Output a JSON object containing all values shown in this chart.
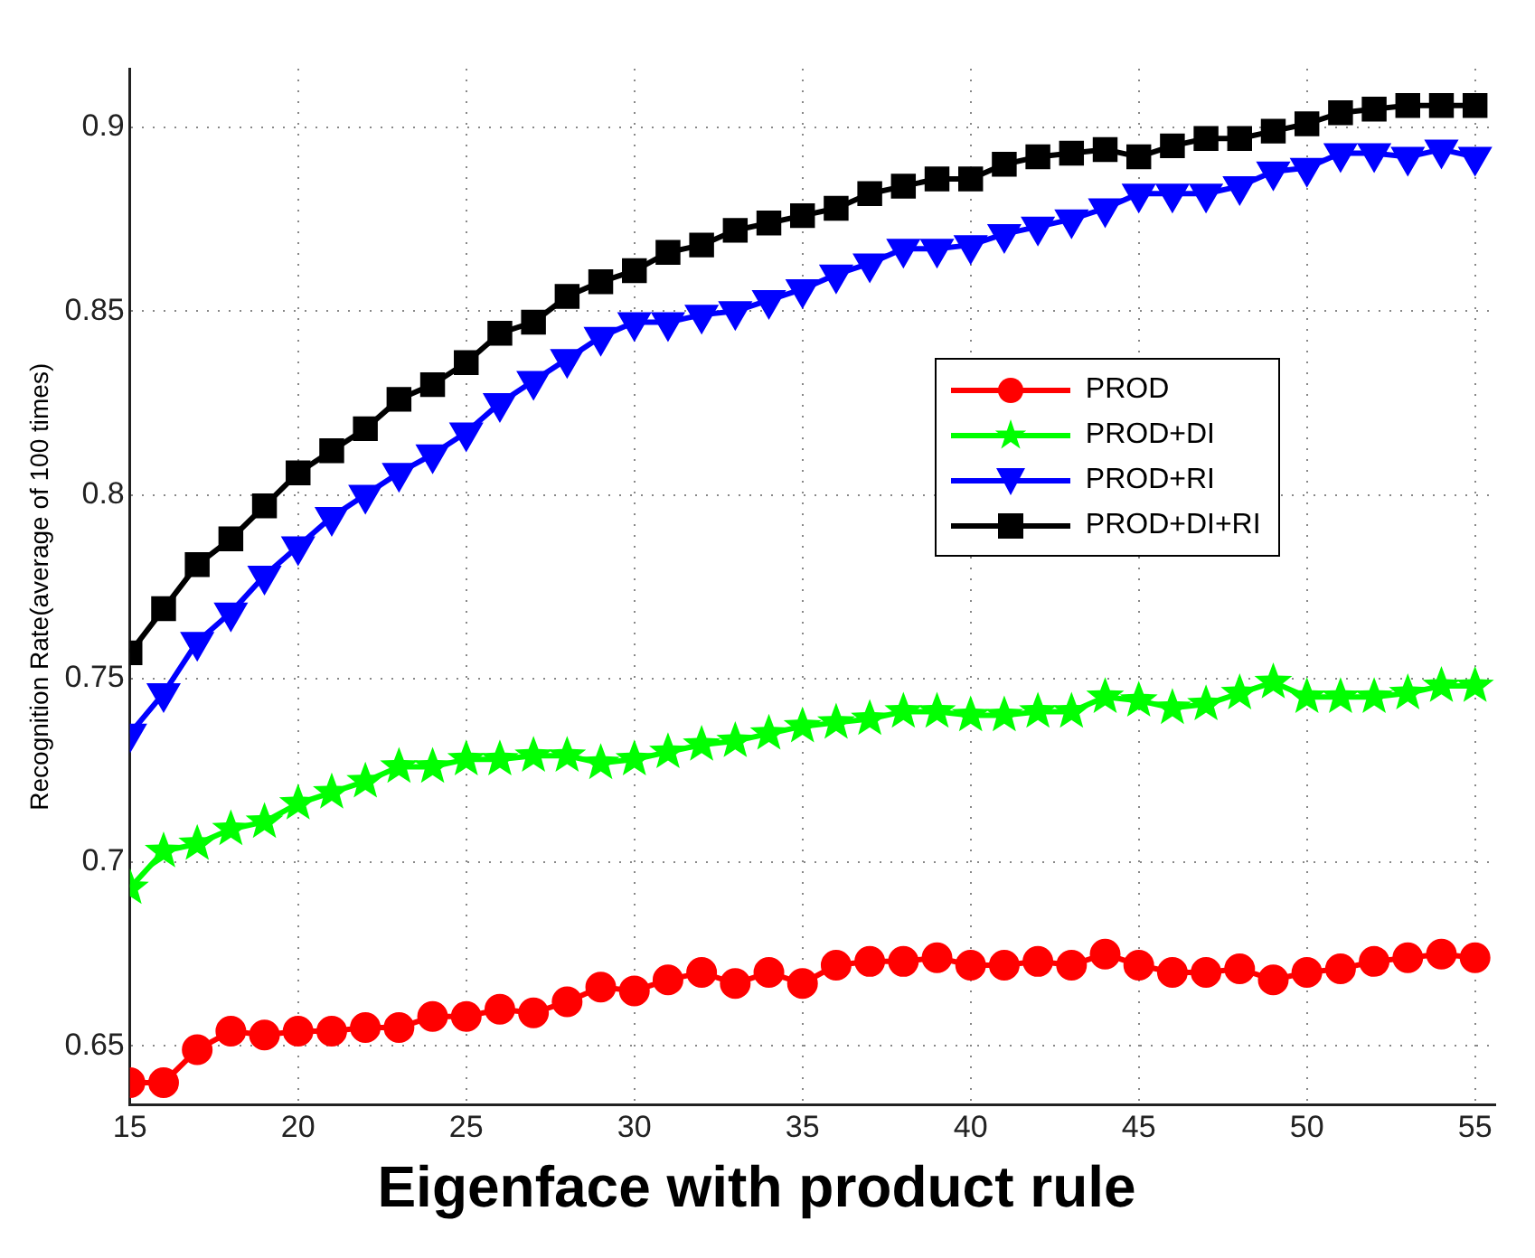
{
  "chart_data": {
    "type": "line",
    "title": "Eigenface with product rule",
    "ylabel": "Recognition Rate(average of 100 times)",
    "x": [
      15,
      16,
      17,
      18,
      19,
      20,
      21,
      22,
      23,
      24,
      25,
      26,
      27,
      28,
      29,
      30,
      31,
      32,
      33,
      34,
      35,
      36,
      37,
      38,
      39,
      40,
      41,
      42,
      43,
      44,
      45,
      46,
      47,
      48,
      49,
      50,
      51,
      52,
      53,
      54,
      55
    ],
    "series": [
      {
        "name": "PROD",
        "color": "#ff0000",
        "marker": "circle",
        "values": [
          0.64,
          0.64,
          0.649,
          0.654,
          0.653,
          0.654,
          0.654,
          0.655,
          0.655,
          0.658,
          0.658,
          0.66,
          0.659,
          0.662,
          0.666,
          0.665,
          0.668,
          0.67,
          0.667,
          0.67,
          0.667,
          0.672,
          0.673,
          0.673,
          0.674,
          0.672,
          0.672,
          0.673,
          0.672,
          0.675,
          0.672,
          0.67,
          0.67,
          0.671,
          0.668,
          0.67,
          0.671,
          0.673,
          0.674,
          0.675,
          0.674
        ]
      },
      {
        "name": "PROD+DI",
        "color": "#00ff00",
        "marker": "star",
        "values": [
          0.693,
          0.703,
          0.705,
          0.709,
          0.711,
          0.716,
          0.719,
          0.722,
          0.726,
          0.726,
          0.728,
          0.728,
          0.729,
          0.729,
          0.727,
          0.728,
          0.73,
          0.732,
          0.733,
          0.735,
          0.737,
          0.738,
          0.739,
          0.741,
          0.741,
          0.74,
          0.74,
          0.741,
          0.741,
          0.745,
          0.744,
          0.742,
          0.743,
          0.746,
          0.749,
          0.745,
          0.745,
          0.745,
          0.746,
          0.748,
          0.748
        ]
      },
      {
        "name": "PROD+RI",
        "color": "#0000ff",
        "marker": "triangle",
        "values": [
          0.735,
          0.746,
          0.76,
          0.768,
          0.778,
          0.786,
          0.794,
          0.8,
          0.806,
          0.811,
          0.817,
          0.825,
          0.831,
          0.837,
          0.843,
          0.847,
          0.847,
          0.849,
          0.85,
          0.853,
          0.856,
          0.86,
          0.863,
          0.867,
          0.867,
          0.868,
          0.871,
          0.873,
          0.875,
          0.878,
          0.882,
          0.882,
          0.882,
          0.884,
          0.888,
          0.889,
          0.893,
          0.893,
          0.892,
          0.894,
          0.892
        ]
      },
      {
        "name": "PROD+DI+RI",
        "color": "#000000",
        "marker": "square",
        "values": [
          0.757,
          0.769,
          0.781,
          0.788,
          0.797,
          0.806,
          0.812,
          0.818,
          0.826,
          0.83,
          0.836,
          0.844,
          0.847,
          0.854,
          0.858,
          0.861,
          0.866,
          0.868,
          0.872,
          0.874,
          0.876,
          0.878,
          0.882,
          0.884,
          0.886,
          0.886,
          0.89,
          0.892,
          0.893,
          0.894,
          0.892,
          0.895,
          0.897,
          0.897,
          0.899,
          0.901,
          0.904,
          0.905,
          0.906,
          0.906,
          0.906
        ]
      }
    ],
    "xlim": [
      15,
      55.6
    ],
    "xticks": [
      15,
      20,
      25,
      30,
      35,
      40,
      45,
      50,
      55
    ],
    "ylim": [
      0.634,
      0.916
    ],
    "yticks": [
      0.65,
      0.7,
      0.75,
      0.8,
      0.85,
      0.9
    ],
    "grid": true,
    "legend": "right",
    "line_style": "solid"
  }
}
